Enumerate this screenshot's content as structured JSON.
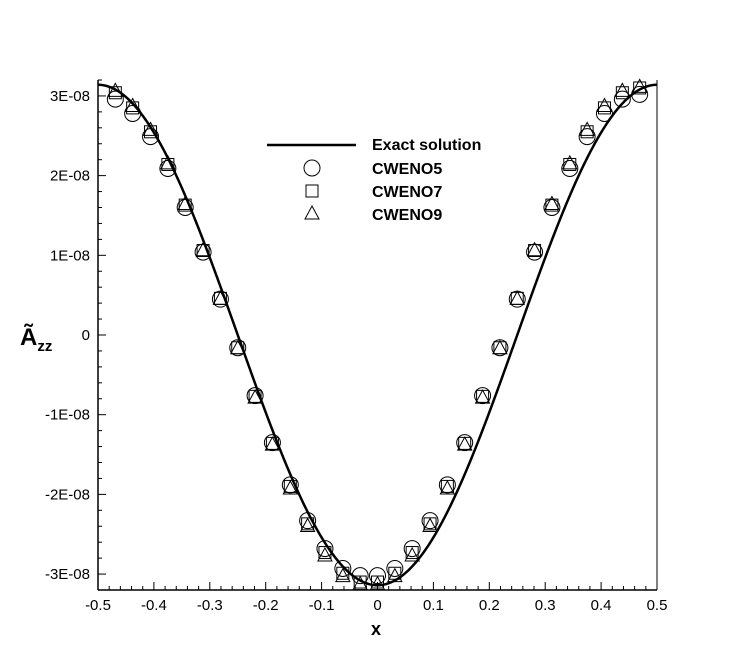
{
  "chart_data": {
    "type": "scatter",
    "title": "",
    "xlabel": "x",
    "ylabel": "Ã_zz",
    "xlim": [
      -0.5,
      0.5
    ],
    "ylim": [
      -3.2e-08,
      3.2e-08
    ],
    "grid": false,
    "legend_position": "top-center",
    "x_ticks": [
      {
        "value": -0.5,
        "label": "-0.5"
      },
      {
        "value": -0.4,
        "label": "-0.4"
      },
      {
        "value": -0.3,
        "label": "-0.3"
      },
      {
        "value": -0.2,
        "label": "-0.2"
      },
      {
        "value": -0.1,
        "label": "-0.1"
      },
      {
        "value": 0.0,
        "label": "0"
      },
      {
        "value": 0.1,
        "label": "0.1"
      },
      {
        "value": 0.2,
        "label": "0.2"
      },
      {
        "value": 0.3,
        "label": "0.3"
      },
      {
        "value": 0.4,
        "label": "0.4"
      },
      {
        "value": 0.5,
        "label": "0.5"
      }
    ],
    "y_ticks": [
      {
        "value": 3e-08,
        "label": "3E-08"
      },
      {
        "value": 2e-08,
        "label": "2E-08"
      },
      {
        "value": 1e-08,
        "label": "1E-08"
      },
      {
        "value": 0,
        "label": "0"
      },
      {
        "value": -1e-08,
        "label": "-1E-08"
      },
      {
        "value": -2e-08,
        "label": "-2E-08"
      },
      {
        "value": -3e-08,
        "label": "-3E-08"
      }
    ],
    "exact": {
      "name": "Exact solution",
      "amplitude": 3.14e-08,
      "form": "-A cos(2πx)"
    },
    "series": [
      {
        "name": "CWENO5",
        "marker": "circle",
        "x": [
          -0.469,
          -0.438,
          -0.406,
          -0.375,
          -0.344,
          -0.312,
          -0.281,
          -0.25,
          -0.219,
          -0.188,
          -0.156,
          -0.125,
          -0.094,
          -0.062,
          -0.031,
          0.0,
          0.031,
          0.062,
          0.094,
          0.125,
          0.156,
          0.188,
          0.219,
          0.25,
          0.281,
          0.312,
          0.344,
          0.375,
          0.406,
          0.438,
          0.469
        ],
        "y": [
          2.96e-08,
          2.78e-08,
          2.49e-08,
          2.09e-08,
          1.6e-08,
          1.04e-08,
          4.5e-09,
          -1.6e-09,
          -7.6e-09,
          -1.35e-08,
          -1.88e-08,
          -2.33e-08,
          -2.68e-08,
          -2.93e-08,
          -3.02e-08,
          -3.02e-08,
          -2.93e-08,
          -2.68e-08,
          -2.33e-08,
          -1.88e-08,
          -1.35e-08,
          -7.6e-09,
          -1.6e-09,
          4.5e-09,
          1.04e-08,
          1.6e-08,
          2.09e-08,
          2.49e-08,
          2.78e-08,
          2.96e-08,
          3.02e-08
        ]
      },
      {
        "name": "CWENO7",
        "marker": "square",
        "x": [
          -0.469,
          -0.438,
          -0.406,
          -0.375,
          -0.344,
          -0.312,
          -0.281,
          -0.25,
          -0.219,
          -0.188,
          -0.156,
          -0.125,
          -0.094,
          -0.062,
          -0.031,
          0.0,
          0.031,
          0.062,
          0.094,
          0.125,
          0.156,
          0.188,
          0.219,
          0.25,
          0.281,
          0.312,
          0.344,
          0.375,
          0.406,
          0.438,
          0.469
        ],
        "y": [
          3.04e-08,
          2.85e-08,
          2.55e-08,
          2.14e-08,
          1.63e-08,
          1.06e-08,
          4.6e-09,
          -1.6e-09,
          -7.7e-09,
          -1.36e-08,
          -1.9e-08,
          -2.37e-08,
          -2.73e-08,
          -2.99e-08,
          -3.1e-08,
          -3.1e-08,
          -2.99e-08,
          -2.73e-08,
          -2.37e-08,
          -1.9e-08,
          -1.36e-08,
          -7.7e-09,
          -1.6e-09,
          4.6e-09,
          1.06e-08,
          1.63e-08,
          2.14e-08,
          2.55e-08,
          2.85e-08,
          3.04e-08,
          3.1e-08
        ]
      },
      {
        "name": "CWENO9",
        "marker": "triangle",
        "x": [
          -0.469,
          -0.438,
          -0.406,
          -0.375,
          -0.344,
          -0.312,
          -0.281,
          -0.25,
          -0.219,
          -0.188,
          -0.156,
          -0.125,
          -0.094,
          -0.062,
          -0.031,
          0.0,
          0.031,
          0.062,
          0.094,
          0.125,
          0.156,
          0.188,
          0.219,
          0.25,
          0.281,
          0.312,
          0.344,
          0.375,
          0.406,
          0.438,
          0.469
        ],
        "y": [
          3.07e-08,
          2.88e-08,
          2.58e-08,
          2.16e-08,
          1.65e-08,
          1.07e-08,
          4.6e-09,
          -1.6e-09,
          -7.8e-09,
          -1.37e-08,
          -1.92e-08,
          -2.39e-08,
          -2.76e-08,
          -3.02e-08,
          -3.12e-08,
          -3.12e-08,
          -3.02e-08,
          -2.76e-08,
          -2.39e-08,
          -1.92e-08,
          -1.37e-08,
          -7.8e-09,
          -1.6e-09,
          4.6e-09,
          1.07e-08,
          1.65e-08,
          2.16e-08,
          2.58e-08,
          2.88e-08,
          3.07e-08,
          3.12e-08
        ]
      }
    ]
  }
}
